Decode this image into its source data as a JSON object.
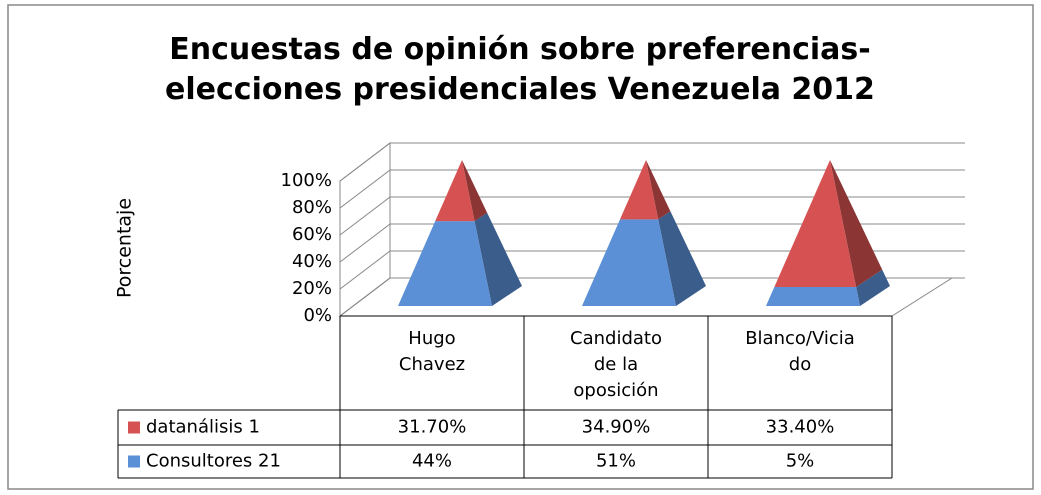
{
  "chart_data": {
    "type": "pyramid3d",
    "stacking": "percent",
    "title": "Encuestas de opinión sobre preferencias- elecciones presidenciales Venezuela 2012",
    "y_label": "Porcentaje",
    "categories": [
      "Hugo Chavez",
      "Candidato de la oposición",
      "Blanco/Viciado"
    ],
    "series": [
      {
        "name": "datanálisis 1",
        "color": "#d65252",
        "values": [
          31.7,
          34.9,
          33.4
        ],
        "value_labels": [
          "31.70%",
          "34.90%",
          "33.40%"
        ]
      },
      {
        "name": "Consultores 21",
        "color": "#5b8fd6",
        "values": [
          44,
          51,
          5
        ],
        "value_labels": [
          "44%",
          "51%",
          "5%"
        ]
      }
    ],
    "ylim": [
      0,
      100
    ],
    "yticks": [
      {
        "value": 0,
        "label": "0%"
      },
      {
        "value": 20,
        "label": "20%"
      },
      {
        "value": 40,
        "label": "40%"
      },
      {
        "value": 60,
        "label": "60%"
      },
      {
        "value": 80,
        "label": "80%"
      },
      {
        "value": 100,
        "label": "100%"
      }
    ],
    "grid": true
  }
}
